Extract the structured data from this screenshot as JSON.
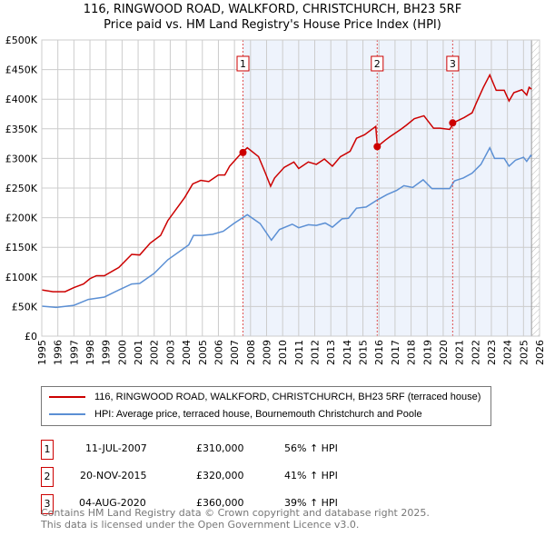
{
  "title": "116, RINGWOOD ROAD, WALKFORD, CHRISTCHURCH, BH23 5RF",
  "subtitle": "Price paid vs. HM Land Registry's House Price Index (HPI)",
  "chart_data": {
    "type": "line",
    "xlim": [
      1995,
      2026
    ],
    "ylim": [
      0,
      500000
    ],
    "x_ticks": [
      "1995",
      "1996",
      "1997",
      "1998",
      "1999",
      "2000",
      "2001",
      "2002",
      "2003",
      "2004",
      "2005",
      "2006",
      "2007",
      "2008",
      "2009",
      "2010",
      "2011",
      "2012",
      "2013",
      "2014",
      "2015",
      "2016",
      "2017",
      "2018",
      "2019",
      "2020",
      "2021",
      "2022",
      "2023",
      "2024",
      "2025",
      "2026"
    ],
    "y_ticks": [
      {
        "v": 0,
        "l": "£0"
      },
      {
        "v": 50000,
        "l": "£50K"
      },
      {
        "v": 100000,
        "l": "£100K"
      },
      {
        "v": 150000,
        "l": "£150K"
      },
      {
        "v": 200000,
        "l": "£200K"
      },
      {
        "v": 250000,
        "l": "£250K"
      },
      {
        "v": 300000,
        "l": "£300K"
      },
      {
        "v": 350000,
        "l": "£350K"
      },
      {
        "v": 400000,
        "l": "£400K"
      },
      {
        "v": 450000,
        "l": "£450K"
      },
      {
        "v": 500000,
        "l": "£500K"
      }
    ],
    "shaded_range": [
      2007.53,
      2025.5
    ],
    "hatched_range": [
      2025.5,
      2026
    ],
    "series": [
      {
        "name": "116, RINGWOOD ROAD, WALKFORD, CHRISTCHURCH, BH23 5RF (terraced house)",
        "color": "#cc0000",
        "points": [
          [
            1995,
            78
          ],
          [
            1995.7,
            75
          ],
          [
            1996.45,
            75
          ],
          [
            1997,
            82
          ],
          [
            1997.6,
            88
          ],
          [
            1998,
            97
          ],
          [
            1998.4,
            102
          ],
          [
            1998.9,
            102
          ],
          [
            1999.8,
            116
          ],
          [
            2000.6,
            138
          ],
          [
            2001.1,
            137
          ],
          [
            2001.75,
            157
          ],
          [
            2002.4,
            170
          ],
          [
            2002.85,
            195
          ],
          [
            2003.9,
            234
          ],
          [
            2004.4,
            257
          ],
          [
            2004.9,
            263
          ],
          [
            2005.4,
            261
          ],
          [
            2006,
            272
          ],
          [
            2006.4,
            272
          ],
          [
            2006.7,
            287
          ],
          [
            2007.4,
            308
          ],
          [
            2007.8,
            318
          ],
          [
            2008.5,
            303
          ],
          [
            2008.9,
            277
          ],
          [
            2009.25,
            253
          ],
          [
            2009.5,
            267
          ],
          [
            2010.1,
            285
          ],
          [
            2010.7,
            294
          ],
          [
            2011,
            283
          ],
          [
            2011.6,
            294
          ],
          [
            2012.1,
            290
          ],
          [
            2012.6,
            299
          ],
          [
            2013.1,
            287
          ],
          [
            2013.6,
            303
          ],
          [
            2014.2,
            312
          ],
          [
            2014.6,
            334
          ],
          [
            2015.1,
            340
          ],
          [
            2015.8,
            354
          ],
          [
            2015.9,
            320
          ],
          [
            2016.4,
            331
          ],
          [
            2016.7,
            337
          ],
          [
            2017.35,
            349
          ],
          [
            2017.7,
            356
          ],
          [
            2018.2,
            367
          ],
          [
            2018.8,
            372
          ],
          [
            2019.4,
            351
          ],
          [
            2019.8,
            351
          ],
          [
            2020.4,
            349
          ],
          [
            2020.7,
            361
          ],
          [
            2021.3,
            369
          ],
          [
            2021.8,
            377
          ],
          [
            2022.1,
            396
          ],
          [
            2022.5,
            420
          ],
          [
            2022.9,
            441
          ],
          [
            2023.3,
            415
          ],
          [
            2023.8,
            415
          ],
          [
            2024.1,
            397
          ],
          [
            2024.4,
            411
          ],
          [
            2024.9,
            416
          ],
          [
            2025.2,
            407
          ],
          [
            2025.35,
            420
          ],
          [
            2025.5,
            417
          ]
        ]
      },
      {
        "name": "HPI: Average price, terraced house, Bournemouth Christchurch and Poole",
        "color": "#5b8fd4",
        "points": [
          [
            1995,
            50.6
          ],
          [
            1995.9,
            48.6
          ],
          [
            1997,
            52
          ],
          [
            1997.9,
            62
          ],
          [
            1998.9,
            66
          ],
          [
            1999.8,
            78
          ],
          [
            2000.6,
            88
          ],
          [
            2001.1,
            89
          ],
          [
            2002,
            106
          ],
          [
            2002.85,
            129
          ],
          [
            2004.15,
            154
          ],
          [
            2004.45,
            170
          ],
          [
            2005,
            170
          ],
          [
            2005.65,
            172
          ],
          [
            2006.3,
            177
          ],
          [
            2006.95,
            190
          ],
          [
            2007.8,
            205
          ],
          [
            2008.6,
            190
          ],
          [
            2009.3,
            162
          ],
          [
            2009.8,
            180
          ],
          [
            2010.6,
            189
          ],
          [
            2011,
            183
          ],
          [
            2011.6,
            188
          ],
          [
            2012.1,
            187
          ],
          [
            2012.65,
            191
          ],
          [
            2013.1,
            184
          ],
          [
            2013.7,
            198
          ],
          [
            2014.1,
            199
          ],
          [
            2014.6,
            216
          ],
          [
            2015.2,
            218
          ],
          [
            2015.9,
            230
          ],
          [
            2016.5,
            239
          ],
          [
            2017.1,
            246
          ],
          [
            2017.55,
            254
          ],
          [
            2018.1,
            251
          ],
          [
            2018.75,
            264
          ],
          [
            2019.3,
            249
          ],
          [
            2019.7,
            249
          ],
          [
            2020.4,
            249
          ],
          [
            2020.7,
            262
          ],
          [
            2021.25,
            267
          ],
          [
            2021.8,
            275
          ],
          [
            2022.35,
            290
          ],
          [
            2022.9,
            318
          ],
          [
            2023.2,
            300
          ],
          [
            2023.8,
            300
          ],
          [
            2024.1,
            287
          ],
          [
            2024.5,
            297
          ],
          [
            2025,
            302
          ],
          [
            2025.2,
            295
          ],
          [
            2025.45,
            305
          ],
          [
            2025.5,
            303
          ]
        ]
      }
    ],
    "sales": [
      {
        "n": "1",
        "x": 2007.53,
        "value": 310000,
        "date": "11-JUL-2007",
        "price": "£310,000",
        "hpi": "56% ↑ HPI"
      },
      {
        "n": "2",
        "x": 2015.89,
        "value": 320000,
        "date": "20-NOV-2015",
        "price": "£320,000",
        "hpi": "41% ↑ HPI"
      },
      {
        "n": "3",
        "x": 2020.59,
        "value": 360000,
        "date": "04-AUG-2020",
        "price": "£360,000",
        "hpi": "39% ↑ HPI"
      }
    ]
  },
  "legend": {
    "red": "116, RINGWOOD ROAD, WALKFORD, CHRISTCHURCH, BH23 5RF (terraced house)",
    "blue": "HPI: Average price, terraced house, Bournemouth Christchurch and Poole"
  },
  "footer": {
    "line1": "Contains HM Land Registry data © Crown copyright and database right 2025.",
    "line2": "This data is licensed under the Open Government Licence v3.0."
  }
}
